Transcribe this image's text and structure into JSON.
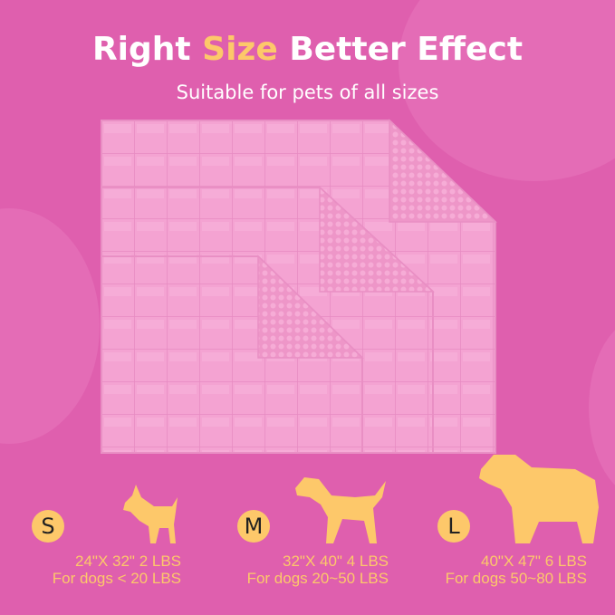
{
  "headline": {
    "part1": "Right ",
    "highlight": "Size",
    "part2": " Better Effect"
  },
  "subtitle": "Suitable for pets of all sizes",
  "colors": {
    "background": "#df5fae",
    "blanket": "#f4a3d2",
    "accent": "#fdc86a",
    "text": "#ffffff"
  },
  "sizes": [
    {
      "letter": "S",
      "icon": "small-dog-icon",
      "dimensions": "24\"X 32\" 2 LBS",
      "fit": "For dogs < 20 LBS"
    },
    {
      "letter": "M",
      "icon": "medium-dog-icon",
      "dimensions": "32\"X 40\" 4 LBS",
      "fit": "For dogs 20~50 LBS"
    },
    {
      "letter": "L",
      "icon": "large-dog-icon",
      "dimensions": "40\"X 47\" 6 LBS",
      "fit": "For dogs 50~80 LBS"
    }
  ]
}
